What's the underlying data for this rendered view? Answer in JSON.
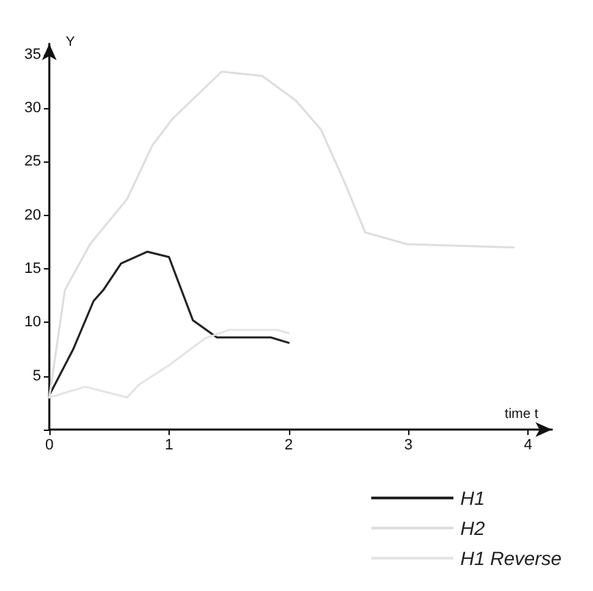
{
  "chart_data": {
    "type": "line",
    "xlabel": "time t",
    "ylabel": "Y",
    "xlim": [
      0,
      4.2
    ],
    "ylim": [
      0,
      36
    ],
    "xticks": [
      0,
      1,
      2,
      3,
      4
    ],
    "yticks": [
      {
        "value": 0,
        "label": null
      },
      5,
      10,
      15,
      20,
      25,
      30,
      35
    ],
    "legend": "bottom right",
    "grid": false,
    "marker": "none",
    "series": [
      {
        "name": "H1",
        "color": "#222222",
        "x": [
          0,
          0.2,
          0.37,
          0.45,
          0.6,
          0.82,
          1.0,
          1.2,
          1.4,
          1.6,
          1.85,
          2.0
        ],
        "values": [
          3.2,
          7.5,
          12,
          13,
          15.5,
          16.6,
          16.1,
          10.2,
          8.6,
          8.6,
          8.6,
          8.1
        ]
      },
      {
        "name": "H2",
        "color": "#dedede",
        "x": [
          0,
          0.13,
          0.34,
          0.65,
          0.86,
          1.03,
          1.44,
          1.78,
          2.06,
          2.27,
          2.47,
          2.64,
          2.99,
          3.88
        ],
        "values": [
          3,
          13,
          17.3,
          21.5,
          26.5,
          29,
          33.4,
          33,
          30.7,
          28,
          23,
          18.4,
          17.3,
          17
        ]
      },
      {
        "name": "H1 Reverse",
        "color": "#e4e4e4",
        "x": [
          0,
          0.3,
          0.65,
          0.75,
          1.0,
          1.3,
          1.5,
          1.9,
          2.0
        ],
        "values": [
          3,
          4,
          3,
          4.2,
          6,
          8.5,
          9.3,
          9.3,
          9
        ]
      }
    ]
  }
}
